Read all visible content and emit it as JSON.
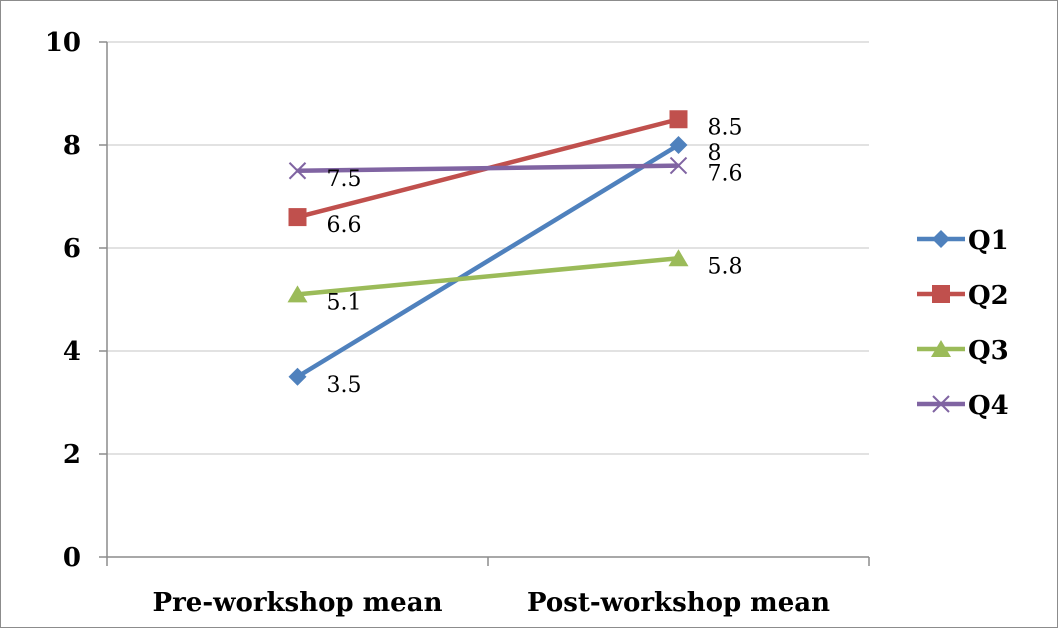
{
  "chart_data": {
    "type": "line",
    "title": "",
    "xlabel": "",
    "ylabel": "",
    "categories": [
      "Pre-workshop mean",
      "Post-workshop mean"
    ],
    "ylim": [
      0,
      10
    ],
    "yticks": [
      "0",
      "2",
      "4",
      "6",
      "8",
      "10"
    ],
    "grid": true,
    "legend_position": "right",
    "series": [
      {
        "name": "Q1",
        "values": [
          3.5,
          8
        ],
        "labels": [
          "3.5",
          "8"
        ],
        "color": "#4f81bd",
        "marker": "diamond"
      },
      {
        "name": "Q2",
        "values": [
          6.6,
          8.5
        ],
        "labels": [
          "6.6",
          "8.5"
        ],
        "color": "#c0504d",
        "marker": "square"
      },
      {
        "name": "Q3",
        "values": [
          5.1,
          5.8
        ],
        "labels": [
          "5.1",
          "5.8"
        ],
        "color": "#9bbb59",
        "marker": "triangle"
      },
      {
        "name": "Q4",
        "values": [
          7.5,
          7.6
        ],
        "labels": [
          "7.5",
          "7.6"
        ],
        "color": "#8064a2",
        "marker": "x"
      }
    ]
  }
}
